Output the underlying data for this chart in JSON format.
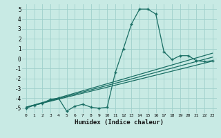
{
  "xlabel": "Humidex (Indice chaleur)",
  "xlim": [
    -0.5,
    23.5
  ],
  "ylim": [
    -5.5,
    5.5
  ],
  "yticks": [
    -5,
    -4,
    -3,
    -2,
    -1,
    0,
    1,
    2,
    3,
    4,
    5
  ],
  "xticks": [
    0,
    1,
    2,
    3,
    4,
    5,
    6,
    7,
    8,
    9,
    10,
    11,
    12,
    13,
    14,
    15,
    16,
    17,
    18,
    19,
    20,
    21,
    22,
    23
  ],
  "bg_color": "#c8eae4",
  "grid_color": "#a0d0cc",
  "line_color": "#1a6e64",
  "series1_x": [
    0,
    1,
    2,
    3,
    4,
    5,
    6,
    7,
    8,
    9,
    10,
    11,
    12,
    13,
    14,
    15,
    16,
    17,
    18,
    19,
    20,
    21,
    22,
    23
  ],
  "series1_y": [
    -5.0,
    -4.7,
    -4.5,
    -4.1,
    -4.0,
    -5.3,
    -4.8,
    -4.6,
    -4.9,
    -5.0,
    -4.9,
    -1.4,
    1.0,
    3.5,
    5.0,
    5.0,
    4.5,
    0.7,
    -0.1,
    0.3,
    0.3,
    -0.2,
    -0.3,
    -0.2
  ],
  "series2_x": [
    0,
    23
  ],
  "series2_y": [
    -4.9,
    -0.25
  ],
  "series3_x": [
    0,
    23
  ],
  "series3_y": [
    -4.9,
    0.15
  ],
  "series4_x": [
    0,
    23
  ],
  "series4_y": [
    -4.9,
    0.55
  ]
}
